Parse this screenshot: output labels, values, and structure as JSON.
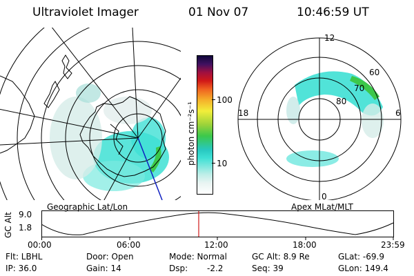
{
  "header": {
    "instrument": "Ultraviolet Imager",
    "date": "01 Nov 07",
    "time": "10:46:59 UT"
  },
  "colorbar": {
    "label": "photon cm⁻²s⁻¹",
    "ticks": [
      "100",
      "10"
    ],
    "scale": "log"
  },
  "left_map": {
    "caption": "Geographic Lat/Lon"
  },
  "right_map": {
    "caption": "Apex MLat/MLT",
    "mlt_labels": {
      "top": "12",
      "left": "18",
      "right": "6",
      "bottom": "0"
    },
    "lat_labels": [
      "60",
      "70",
      "80"
    ]
  },
  "altitude_plot": {
    "ylabel": "GC Alt",
    "yticks": [
      "9.0",
      "1.8"
    ],
    "xticks": [
      "00:00",
      "06:00",
      "12:00",
      "18:00",
      "23:59"
    ],
    "current_time_marker": "10:46:59"
  },
  "status": {
    "filter_label": "Flt: LBHL",
    "ip_label": "IP: 36.0",
    "door_label": "Door: Open",
    "gain_label": "Gain: 14",
    "mode_label": "Mode: Normal",
    "dsp_label": "Dsp:",
    "dsp_value": "-2.2",
    "gcalt_label": "GC Alt: 8.9 Re",
    "seq_label": "Seq: 39",
    "glat_label": "GLat: -69.9",
    "glon_label": "GLon: 149.4"
  },
  "colors": {
    "aurora_cyan": "#3ee0d4",
    "aurora_green": "#3cc84a",
    "marker_red": "#d01818",
    "meridian_blue": "#1020c0"
  }
}
